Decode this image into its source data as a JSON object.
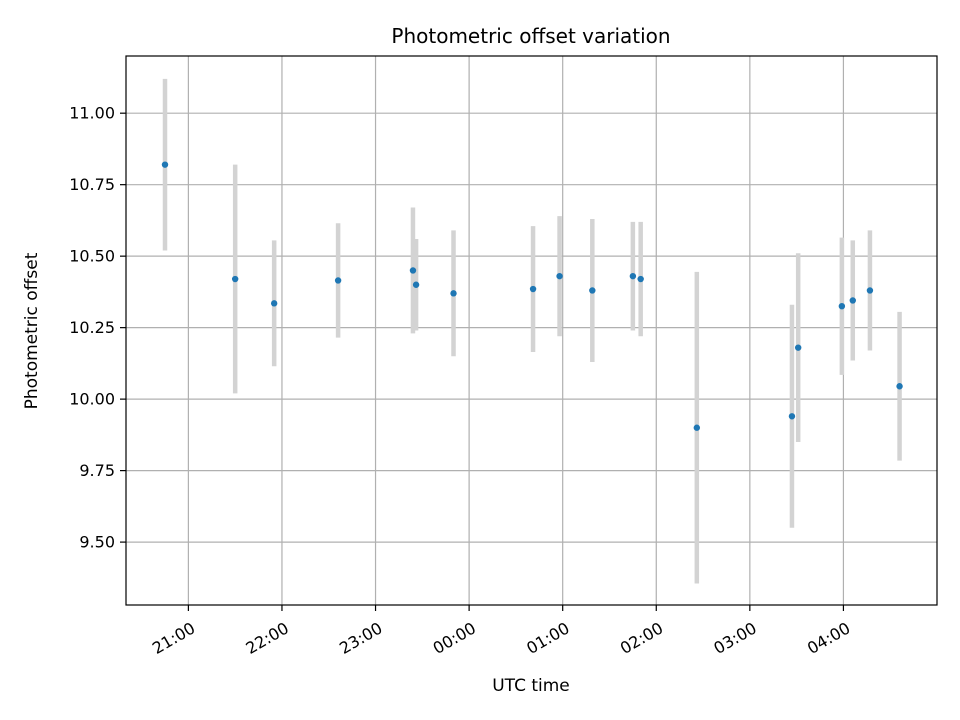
{
  "chart_data": {
    "type": "scatter",
    "title": "Photometric offset variation",
    "xlabel": "UTC time",
    "ylabel": "Photometric offset",
    "x_tick_labels": [
      "21:00",
      "22:00",
      "23:00",
      "00:00",
      "01:00",
      "02:00",
      "03:00",
      "04:00"
    ],
    "y_tick_labels": [
      "9.50",
      "9.75",
      "10.00",
      "10.25",
      "10.50",
      "10.75",
      "11.00"
    ],
    "y_ticks": [
      9.5,
      9.75,
      10.0,
      10.25,
      10.5,
      10.75,
      11.0
    ],
    "xlim": [
      "20:20",
      "05:00"
    ],
    "ylim": [
      9.28,
      11.2
    ],
    "grid": true,
    "colors": {
      "marker": "#1f77b4",
      "errorbar": "#d3d3d3",
      "grid": "#b0b0b0"
    },
    "series": [
      {
        "points": [
          {
            "x": "20:45",
            "y": 10.82,
            "err": 0.3
          },
          {
            "x": "21:30",
            "y": 10.42,
            "err": 0.4
          },
          {
            "x": "21:55",
            "y": 10.335,
            "err": 0.22
          },
          {
            "x": "22:36",
            "y": 10.415,
            "err": 0.2
          },
          {
            "x": "23:24",
            "y": 10.45,
            "err": 0.22
          },
          {
            "x": "23:26",
            "y": 10.4,
            "err": 0.16
          },
          {
            "x": "23:50",
            "y": 10.37,
            "err": 0.22
          },
          {
            "x": "00:41",
            "y": 10.385,
            "err": 0.22
          },
          {
            "x": "00:58",
            "y": 10.43,
            "err": 0.21
          },
          {
            "x": "01:19",
            "y": 10.38,
            "err": 0.25
          },
          {
            "x": "01:45",
            "y": 10.43,
            "err": 0.19
          },
          {
            "x": "01:50",
            "y": 10.42,
            "err": 0.2
          },
          {
            "x": "02:26",
            "y": 9.9,
            "err": 0.545
          },
          {
            "x": "03:27",
            "y": 9.94,
            "err": 0.39
          },
          {
            "x": "03:31",
            "y": 10.18,
            "err": 0.33
          },
          {
            "x": "03:59",
            "y": 10.325,
            "err": 0.24
          },
          {
            "x": "04:06",
            "y": 10.345,
            "err": 0.21
          },
          {
            "x": "04:17",
            "y": 10.38,
            "err": 0.21
          },
          {
            "x": "04:36",
            "y": 10.045,
            "err": 0.26
          }
        ]
      }
    ]
  }
}
